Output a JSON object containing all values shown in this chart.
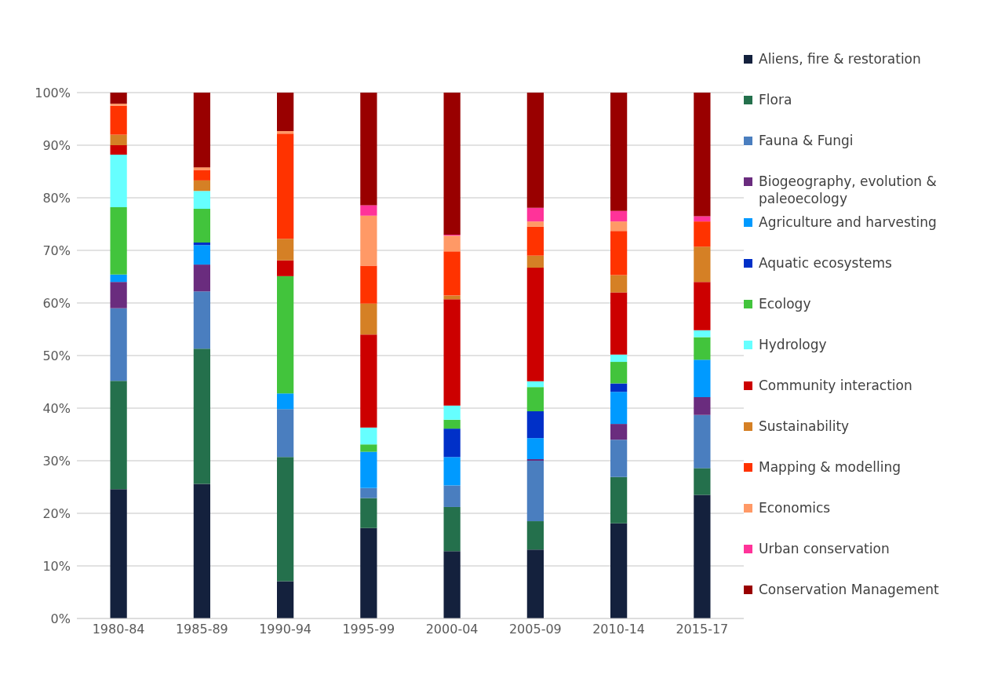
{
  "chart_data": {
    "type": "bar",
    "stacked": true,
    "categories": [
      "1980-84",
      "1985-89",
      "1990-94",
      "1995-99",
      "2000-04",
      "2005-09",
      "2010-14",
      "2015-17"
    ],
    "series": [
      {
        "name": "Aliens, fire & restoration",
        "color": "#14213d",
        "values": [
          24.6,
          25.6,
          7.1,
          17.2,
          12.8,
          13.1,
          18.1,
          23.5
        ]
      },
      {
        "name": "Flora",
        "color": "#24704c",
        "values": [
          20.6,
          25.7,
          23.6,
          5.7,
          8.4,
          5.4,
          8.8,
          5.1
        ]
      },
      {
        "name": "Fauna & Fungi",
        "color": "#4a7ebf",
        "values": [
          13.8,
          10.9,
          9.1,
          1.9,
          4.1,
          11.5,
          7.1,
          10.1
        ]
      },
      {
        "name": "Biogeography, evolution & paleoecology",
        "color": "#6a2c7e",
        "values": [
          5,
          5.1,
          0,
          0,
          0,
          0.3,
          3,
          3.4
        ]
      },
      {
        "name": "Agriculture and harvesting",
        "color": "#009aff",
        "values": [
          1.4,
          3.7,
          3,
          6.9,
          5.4,
          4,
          6.1,
          7.1
        ]
      },
      {
        "name": "Aquatic ecosystems",
        "color": "#0030c8",
        "values": [
          0,
          0.5,
          0,
          0,
          5.4,
          5.1,
          1.6,
          0
        ]
      },
      {
        "name": "Ecology",
        "color": "#42c43c",
        "values": [
          12.8,
          6.4,
          22.3,
          1.4,
          1.7,
          4.6,
          4.1,
          4.3
        ]
      },
      {
        "name": "Hydrology",
        "color": "#66ffff",
        "values": [
          10,
          3.4,
          0,
          3.2,
          2.7,
          1.1,
          1.4,
          1.3
        ]
      },
      {
        "name": "Community interaction",
        "color": "#cc0000",
        "values": [
          1.8,
          0,
          3,
          17.7,
          20.2,
          21.6,
          11.8,
          9.2
        ]
      },
      {
        "name": "Sustainability",
        "color": "#d58025",
        "values": [
          2,
          2,
          4.1,
          5.9,
          0.7,
          2.3,
          3.3,
          6.7
        ]
      },
      {
        "name": "Mapping & modelling",
        "color": "#ff3300",
        "values": [
          5.5,
          2,
          20,
          7.2,
          8.4,
          5.5,
          8.4,
          4.8
        ]
      },
      {
        "name": "Economics",
        "color": "#ff9966",
        "values": [
          0.4,
          0.5,
          0.5,
          9.5,
          3,
          1,
          1.8,
          0
        ]
      },
      {
        "name": "Urban conservation",
        "color": "#ff3399",
        "values": [
          0,
          0,
          0,
          2,
          0.2,
          2.6,
          2,
          1
        ]
      },
      {
        "name": "Conservation Management",
        "color": "#990000",
        "values": [
          2.1,
          14.2,
          7.3,
          21.4,
          27,
          21.9,
          22.5,
          23.5
        ]
      }
    ],
    "ylim": [
      0,
      100
    ],
    "yticks": [
      {
        "value": 0,
        "label": "0%"
      },
      {
        "value": 10,
        "label": "10%"
      },
      {
        "value": 20,
        "label": "20%"
      },
      {
        "value": 30,
        "label": "30%"
      },
      {
        "value": 40,
        "label": "40%"
      },
      {
        "value": 50,
        "label": "50%"
      },
      {
        "value": 60,
        "label": "60%"
      },
      {
        "value": 70,
        "label": "70%"
      },
      {
        "value": 80,
        "label": "80%"
      },
      {
        "value": 90,
        "label": "90%"
      },
      {
        "value": 100,
        "label": "100%"
      }
    ],
    "grid": "y",
    "legend": "right"
  }
}
